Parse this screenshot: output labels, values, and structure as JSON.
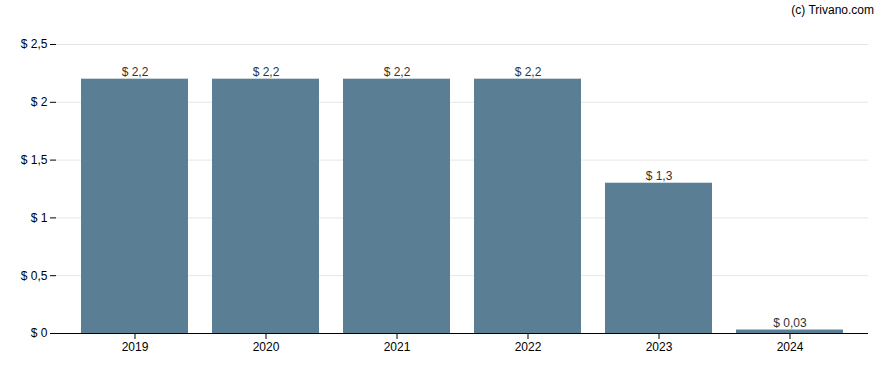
{
  "chart_data": {
    "type": "bar",
    "categories": [
      "2019",
      "2020",
      "2021",
      "2022",
      "2023",
      "2024"
    ],
    "values": [
      2.2,
      2.2,
      2.2,
      2.2,
      1.3,
      0.03
    ],
    "value_labels": [
      "$ 2,2",
      "$ 2,2",
      "$ 2,2",
      "$ 2,2",
      "$ 1,3",
      "$ 0,03"
    ],
    "data_labels": true,
    "color": "#5a7f95",
    "ylim": [
      0,
      2.5
    ],
    "yticks": [
      {
        "value": 0,
        "label": "$ 0"
      },
      {
        "value": 0.5,
        "label": "$ 0,5"
      },
      {
        "value": 1.0,
        "label": "$ 1"
      },
      {
        "value": 1.5,
        "label": "$ 1,5"
      },
      {
        "value": 2.0,
        "label": "$ 2"
      },
      {
        "value": 2.5,
        "label": "$ 2,5"
      }
    ],
    "grid": true,
    "annotation": "(c) Trivano.com"
  }
}
